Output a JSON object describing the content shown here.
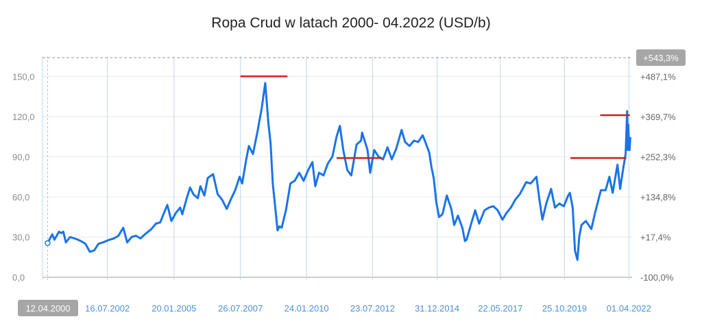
{
  "title": "Ropa Crud w latach 2000- 04.2022 (USD/b)",
  "colors": {
    "line": "#1a73e8",
    "marker": "#d42020",
    "grid_v": "#b9d7f0",
    "grid_h": "#e8e8e8",
    "badge": "#a6a6a6"
  },
  "chart_data": {
    "type": "line",
    "title": "Ropa Crud w latach 2000- 04.2022 (USD/b)",
    "xlabel": "",
    "ylabel": "",
    "xlim": [
      "2000-02-01",
      "2022-05-15"
    ],
    "ylim": [
      -2,
      165
    ],
    "y_ticks": [
      {
        "value": 0,
        "label": "0,0"
      },
      {
        "value": 30,
        "label": "30,0"
      },
      {
        "value": 60,
        "label": "60,0"
      },
      {
        "value": 90,
        "label": "90,0"
      },
      {
        "value": 120,
        "label": "120,0"
      },
      {
        "value": 150,
        "label": "150,0"
      }
    ],
    "right_ticks": [
      {
        "value": 0,
        "label": "-100,0%"
      },
      {
        "value": 30,
        "label": "+17,4%"
      },
      {
        "value": 60,
        "label": "+134,8%"
      },
      {
        "value": 90,
        "label": "+252,3%"
      },
      {
        "value": 120,
        "label": "+369,7%"
      },
      {
        "value": 150,
        "label": "+487,1%"
      }
    ],
    "x_ticks": [
      {
        "date": "2000-04-12",
        "label": "12.04.2000",
        "highlight": true
      },
      {
        "date": "2002-07-16",
        "label": "16.07.2002"
      },
      {
        "date": "2005-01-20",
        "label": "20.01.2005"
      },
      {
        "date": "2007-07-26",
        "label": "26.07.2007"
      },
      {
        "date": "2010-01-24",
        "label": "24.01.2010"
      },
      {
        "date": "2012-07-23",
        "label": "23.07.2012"
      },
      {
        "date": "2014-12-31",
        "label": "31.12.2014"
      },
      {
        "date": "2017-05-22",
        "label": "22.05.2017"
      },
      {
        "date": "2019-10-25",
        "label": "25.10.2019"
      },
      {
        "date": "2022-04-01",
        "label": "01.04.2022"
      }
    ],
    "reference_line": {
      "value": 164,
      "label": "+543,3%"
    },
    "series": [
      {
        "points": [
          [
            "2000-04-12",
            25.5
          ],
          [
            "2000-05-15",
            29
          ],
          [
            "2000-06-15",
            32
          ],
          [
            "2000-07-15",
            28
          ],
          [
            "2000-09-15",
            34
          ],
          [
            "2000-10-15",
            33
          ],
          [
            "2000-11-15",
            34
          ],
          [
            "2000-12-20",
            26
          ],
          [
            "2001-02-15",
            30
          ],
          [
            "2001-05-15",
            28.5
          ],
          [
            "2001-07-15",
            27
          ],
          [
            "2001-09-15",
            25
          ],
          [
            "2001-11-15",
            19
          ],
          [
            "2002-01-15",
            20
          ],
          [
            "2002-03-15",
            25
          ],
          [
            "2002-05-15",
            26
          ],
          [
            "2002-08-15",
            28
          ],
          [
            "2002-10-15",
            29
          ],
          [
            "2002-12-15",
            31
          ],
          [
            "2003-02-20",
            37
          ],
          [
            "2003-04-15",
            26
          ],
          [
            "2003-06-15",
            30
          ],
          [
            "2003-08-15",
            31
          ],
          [
            "2003-10-15",
            29
          ],
          [
            "2003-12-15",
            32
          ],
          [
            "2004-03-15",
            36
          ],
          [
            "2004-05-15",
            40
          ],
          [
            "2004-07-15",
            41
          ],
          [
            "2004-08-20",
            46
          ],
          [
            "2004-10-20",
            54
          ],
          [
            "2004-12-15",
            42
          ],
          [
            "2005-02-15",
            48
          ],
          [
            "2005-04-15",
            52
          ],
          [
            "2005-05-15",
            47
          ],
          [
            "2005-07-15",
            59
          ],
          [
            "2005-08-30",
            67
          ],
          [
            "2005-10-15",
            62
          ],
          [
            "2005-12-15",
            59
          ],
          [
            "2006-01-20",
            68
          ],
          [
            "2006-03-15",
            61
          ],
          [
            "2006-05-01",
            74
          ],
          [
            "2006-07-14",
            77
          ],
          [
            "2006-09-15",
            62
          ],
          [
            "2006-11-15",
            58
          ],
          [
            "2007-01-18",
            51
          ],
          [
            "2007-03-15",
            58
          ],
          [
            "2007-05-15",
            65
          ],
          [
            "2007-07-15",
            75
          ],
          [
            "2007-08-20",
            70
          ],
          [
            "2007-10-15",
            88
          ],
          [
            "2007-11-20",
            98
          ],
          [
            "2008-01-15",
            92
          ],
          [
            "2008-03-15",
            108
          ],
          [
            "2008-05-15",
            126
          ],
          [
            "2008-07-03",
            145
          ],
          [
            "2008-08-15",
            115
          ],
          [
            "2008-09-15",
            100
          ],
          [
            "2008-10-15",
            70
          ],
          [
            "2008-12-20",
            35
          ],
          [
            "2009-01-15",
            38
          ],
          [
            "2009-02-15",
            37
          ],
          [
            "2009-04-15",
            50
          ],
          [
            "2009-06-15",
            70
          ],
          [
            "2009-08-15",
            72
          ],
          [
            "2009-10-15",
            78
          ],
          [
            "2009-12-15",
            72
          ],
          [
            "2010-02-15",
            80
          ],
          [
            "2010-04-15",
            86
          ],
          [
            "2010-05-25",
            68
          ],
          [
            "2010-07-15",
            78
          ],
          [
            "2010-09-15",
            76
          ],
          [
            "2010-11-15",
            85
          ],
          [
            "2011-01-15",
            90
          ],
          [
            "2011-03-15",
            105
          ],
          [
            "2011-04-29",
            113
          ],
          [
            "2011-06-15",
            95
          ],
          [
            "2011-08-10",
            80
          ],
          [
            "2011-10-04",
            76
          ],
          [
            "2011-12-15",
            99
          ],
          [
            "2012-02-15",
            102
          ],
          [
            "2012-03-01",
            108
          ],
          [
            "2012-05-15",
            95
          ],
          [
            "2012-06-21",
            78
          ],
          [
            "2012-08-15",
            95
          ],
          [
            "2012-10-15",
            90
          ],
          [
            "2012-12-15",
            88
          ],
          [
            "2013-02-15",
            97
          ],
          [
            "2013-04-15",
            88
          ],
          [
            "2013-06-15",
            96
          ],
          [
            "2013-08-28",
            110
          ],
          [
            "2013-10-15",
            101
          ],
          [
            "2013-12-15",
            98
          ],
          [
            "2014-02-15",
            102
          ],
          [
            "2014-04-15",
            101
          ],
          [
            "2014-06-15",
            106
          ],
          [
            "2014-07-15",
            102
          ],
          [
            "2014-09-15",
            93
          ],
          [
            "2014-10-15",
            82
          ],
          [
            "2014-11-15",
            74
          ],
          [
            "2014-12-20",
            56
          ],
          [
            "2015-01-28",
            45
          ],
          [
            "2015-03-15",
            47
          ],
          [
            "2015-05-15",
            61
          ],
          [
            "2015-07-15",
            51
          ],
          [
            "2015-08-24",
            39
          ],
          [
            "2015-10-15",
            46
          ],
          [
            "2015-12-15",
            37
          ],
          [
            "2016-01-20",
            27
          ],
          [
            "2016-02-11",
            28
          ],
          [
            "2016-04-15",
            40
          ],
          [
            "2016-06-10",
            50
          ],
          [
            "2016-08-03",
            40
          ],
          [
            "2016-10-15",
            50
          ],
          [
            "2016-12-15",
            52
          ],
          [
            "2017-02-15",
            53
          ],
          [
            "2017-04-15",
            50
          ],
          [
            "2017-06-21",
            43
          ],
          [
            "2017-08-15",
            48
          ],
          [
            "2017-10-15",
            52
          ],
          [
            "2017-12-15",
            58
          ],
          [
            "2018-02-15",
            62
          ],
          [
            "2018-05-15",
            71
          ],
          [
            "2018-07-15",
            70
          ],
          [
            "2018-10-03",
            75
          ],
          [
            "2018-11-15",
            57
          ],
          [
            "2018-12-24",
            43
          ],
          [
            "2019-02-15",
            55
          ],
          [
            "2019-04-23",
            66
          ],
          [
            "2019-06-15",
            52
          ],
          [
            "2019-08-15",
            55
          ],
          [
            "2019-10-15",
            53
          ],
          [
            "2019-12-15",
            61
          ],
          [
            "2020-01-08",
            63
          ],
          [
            "2020-02-15",
            52
          ],
          [
            "2020-03-18",
            20
          ],
          [
            "2020-04-21",
            13
          ],
          [
            "2020-05-15",
            30
          ],
          [
            "2020-06-15",
            39
          ],
          [
            "2020-08-15",
            42
          ],
          [
            "2020-10-30",
            36
          ],
          [
            "2020-12-15",
            47
          ],
          [
            "2021-02-15",
            60
          ],
          [
            "2021-03-10",
            65
          ],
          [
            "2021-05-15",
            65
          ],
          [
            "2021-07-06",
            75
          ],
          [
            "2021-08-20",
            63
          ],
          [
            "2021-10-25",
            84
          ],
          [
            "2021-12-01",
            66
          ],
          [
            "2022-01-15",
            82
          ],
          [
            "2022-02-15",
            92
          ],
          [
            "2022-03-08",
            124
          ],
          [
            "2022-03-16",
            95
          ],
          [
            "2022-03-24",
            114
          ],
          [
            "2022-04-01",
            100
          ],
          [
            "2022-04-11",
            95
          ],
          [
            "2022-04-20",
            104
          ]
        ]
      }
    ],
    "markers": [
      {
        "value": 150,
        "x_start": "2007-07-26",
        "x_end": "2009-05-05"
      },
      {
        "value": 89,
        "x_start": "2011-03-15",
        "x_end": "2012-12-01"
      },
      {
        "value": 121,
        "x_start": "2021-03-01",
        "x_end": "2022-04-15"
      },
      {
        "value": 89,
        "x_start": "2020-01-15",
        "x_end": "2022-02-25"
      }
    ]
  }
}
